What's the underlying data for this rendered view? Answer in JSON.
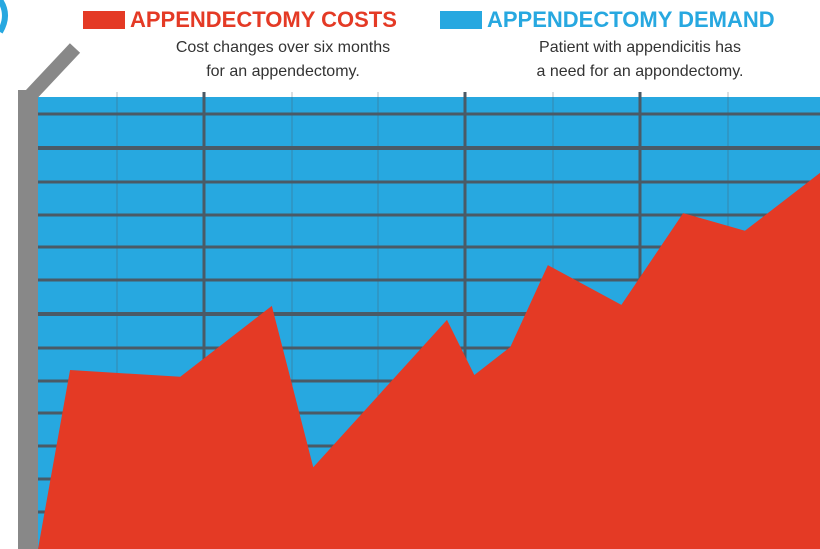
{
  "chart_data": {
    "type": "area",
    "x": [
      0,
      4.1,
      18.2,
      29.9,
      35.2,
      52.3,
      55.8,
      60.4,
      65.2,
      74.6,
      82.5,
      90.4,
      100
    ],
    "xlim": [
      0,
      100
    ],
    "ylim": [
      0,
      100
    ],
    "series": [
      {
        "name": "APPENDECTOMY COSTS",
        "subtitle": "Cost changes over six months for an appendectomy.",
        "color": "#e43a25",
        "values": [
          0,
          39.6,
          38.1,
          53.8,
          18.1,
          50.7,
          38.5,
          44.7,
          62.8,
          54.0,
          74.3,
          70.4,
          83.2
        ]
      },
      {
        "name": "APPENDECTOMY DEMAND",
        "subtitle": "Patient with appendicitis has a need for an appondectomy.",
        "color": "#27a8e0",
        "values": [
          100,
          100,
          100,
          100,
          100,
          100,
          100,
          100,
          100,
          100,
          100,
          100,
          100
        ]
      }
    ]
  }
}
